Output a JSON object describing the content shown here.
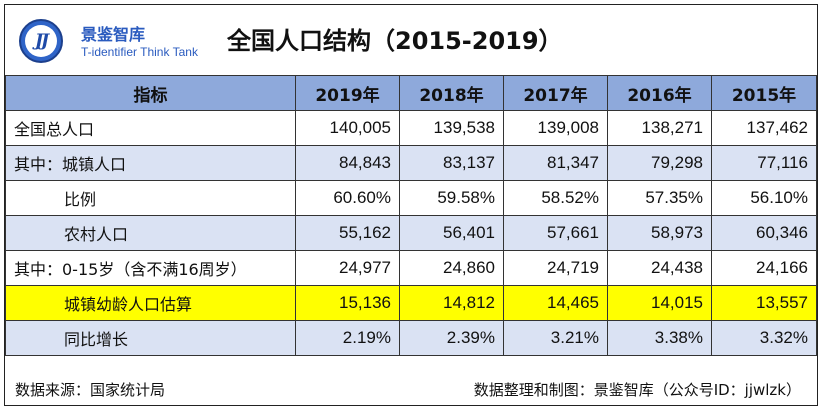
{
  "header": {
    "logo_mark": "JJ",
    "logo_name": "景鉴智库",
    "logo_en": "T-identifier Think Tank",
    "title": "全国人口结构（2015-2019）"
  },
  "table": {
    "columns": [
      "指标",
      "2019年",
      "2018年",
      "2017年",
      "2016年",
      "2015年"
    ],
    "rows": [
      {
        "label": "全国总人口",
        "values": [
          "140,005",
          "139,538",
          "139,008",
          "138,271",
          "137,462"
        ]
      },
      {
        "label": "其中：城镇人口",
        "values": [
          "84,843",
          "83,137",
          "81,347",
          "79,298",
          "77,116"
        ]
      },
      {
        "label": "比例",
        "values": [
          "60.60%",
          "59.58%",
          "58.52%",
          "57.35%",
          "56.10%"
        ]
      },
      {
        "label": "农村人口",
        "values": [
          "55,162",
          "56,401",
          "57,661",
          "58,973",
          "60,346"
        ]
      },
      {
        "label": "其中：0-15岁（含不满16周岁）",
        "values": [
          "24,977",
          "24,860",
          "24,719",
          "24,438",
          "24,166"
        ]
      },
      {
        "label": "城镇幼龄人口估算",
        "values": [
          "15,136",
          "14,812",
          "14,465",
          "14,015",
          "13,557"
        ]
      },
      {
        "label": "同比增长",
        "values": [
          "2.19%",
          "2.39%",
          "3.21%",
          "3.38%",
          "3.32%"
        ]
      }
    ]
  },
  "footer": {
    "source": "数据来源：国家统计局",
    "credit": "数据整理和制图：景鉴智库（公众号ID：jjwlzk）"
  }
}
